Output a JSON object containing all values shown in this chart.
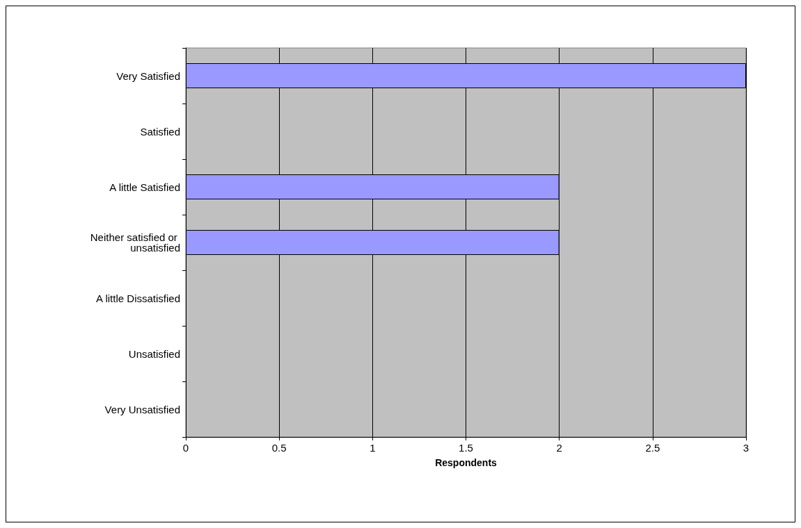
{
  "chart_data": {
    "type": "bar",
    "orientation": "horizontal",
    "xlabel": "Respondents",
    "categories": [
      "Very Satisfied",
      "Satisfied",
      "A little Satisfied",
      "Neither satisfied or unsatisfied",
      "A little Dissatisfied",
      "Unsatisfied",
      "Very Unsatisfied"
    ],
    "values": [
      3,
      0,
      2,
      2,
      0,
      0,
      0
    ],
    "color": "#9999ff",
    "xlim": [
      0,
      3
    ],
    "xticks": [
      0,
      0.5,
      1,
      1.5,
      2,
      2.5,
      3
    ],
    "grid": "x"
  }
}
